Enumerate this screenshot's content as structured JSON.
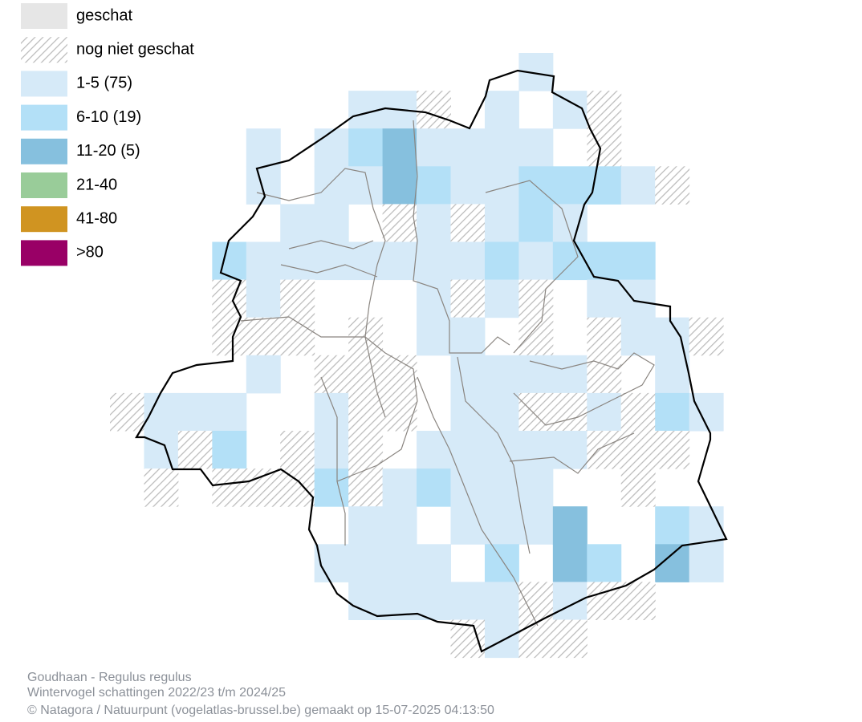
{
  "legend": {
    "items": [
      {
        "label": "geschat",
        "color": "#e6e6e6"
      },
      {
        "label": "nog niet geschat",
        "color": "hatch"
      },
      {
        "label": "1-5 (75)",
        "color": "#d6eaf8"
      },
      {
        "label": "6-10 (19)",
        "color": "#b3e0f7"
      },
      {
        "label": "11-20 (5)",
        "color": "#86c0de"
      },
      {
        "label": "21-40",
        "color": "#99cc99"
      },
      {
        "label": "41-80",
        "color": "#d09421"
      },
      {
        "label": ">80",
        "color": "#990066"
      }
    ]
  },
  "footer": {
    "species": "Goudhaan - Regulus regulus",
    "period": "Wintervogel schattingen 2022/23 t/m 2024/25",
    "credit": "© Natagora / Natuurpunt (vogelatlas-brussel.be) gemaakt op 15-07-2025 04:13:50"
  }
}
